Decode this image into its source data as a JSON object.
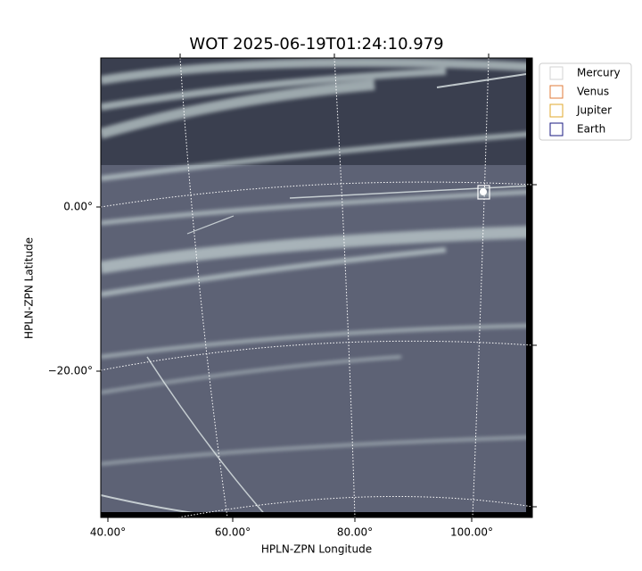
{
  "header": {
    "title": "WOT 2025-06-19T01:24:10.979"
  },
  "axes": {
    "x_label": "HPLN-ZPN Longitude",
    "y_label": "HPLN-ZPN Latitude",
    "x_tick_labels": [
      "40.00°",
      "60.00°",
      "80.00°",
      "100.00°"
    ],
    "y_tick_labels": [
      "0.00°",
      "−20.00°"
    ]
  },
  "legend": {
    "items": [
      {
        "label": "Mercury",
        "color": "#d3d3d3"
      },
      {
        "label": "Venus",
        "color": "#e07b39"
      },
      {
        "label": "Jupiter",
        "color": "#e0a82e"
      },
      {
        "label": "Earth",
        "color": "#1a1a80"
      }
    ]
  }
}
